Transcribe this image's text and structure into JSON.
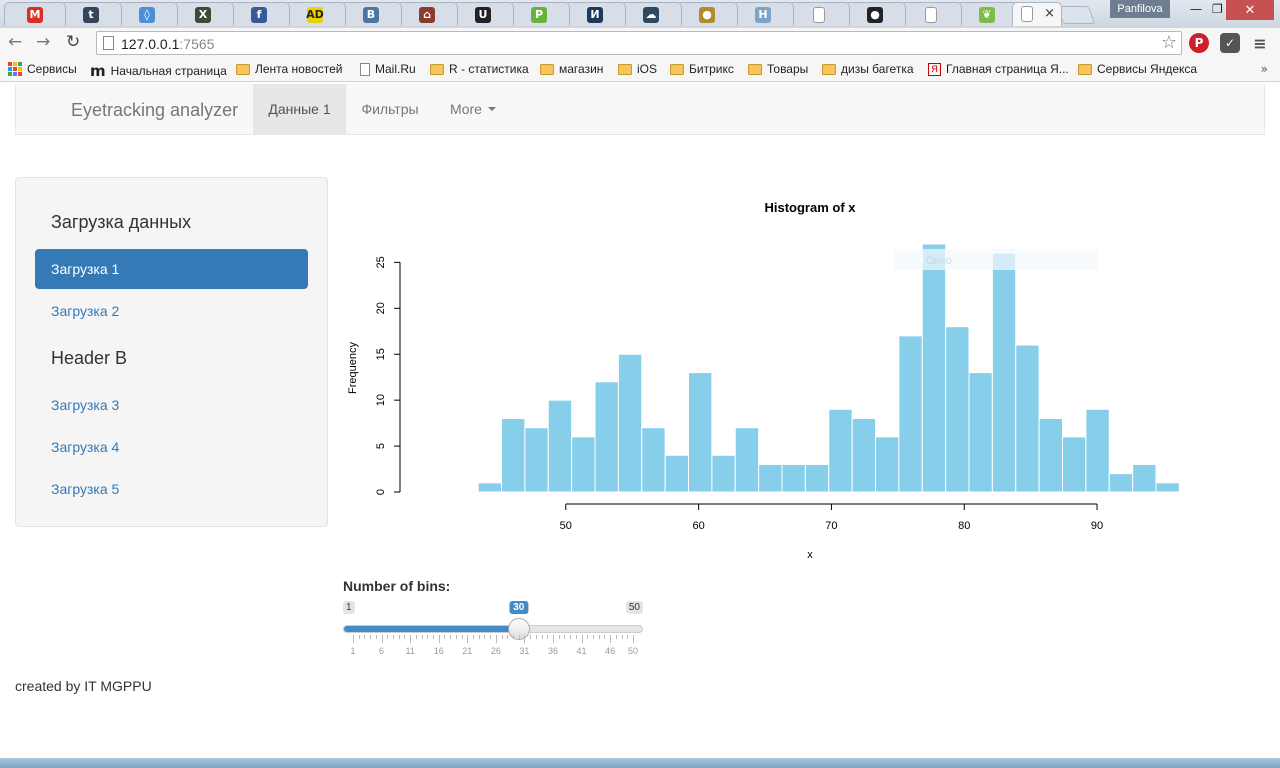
{
  "browser": {
    "tabs": [
      {
        "icon": "gmail-icon",
        "glyph": "M",
        "color": "#d93025"
      },
      {
        "icon": "tumblr-icon",
        "glyph": "t",
        "color": "#35465c"
      },
      {
        "icon": "compass-icon",
        "glyph": "◊",
        "color": "#4a90d9"
      },
      {
        "icon": "xmind-icon",
        "glyph": "X",
        "color": "#3d4a3a"
      },
      {
        "icon": "facebook-icon",
        "glyph": "f",
        "color": "#3b5998"
      },
      {
        "icon": "ad-icon",
        "glyph": "AD",
        "color": "#e8d200"
      },
      {
        "icon": "vk-icon",
        "glyph": "B",
        "color": "#4c75a3"
      },
      {
        "icon": "store-icon",
        "glyph": "⌂",
        "color": "#8a3b2c"
      },
      {
        "icon": "upwork-icon",
        "glyph": "U",
        "color": "#222222"
      },
      {
        "icon": "p-icon",
        "glyph": "P",
        "color": "#65b33a"
      },
      {
        "icon": "i-icon",
        "glyph": "И",
        "color": "#1f3a58"
      },
      {
        "icon": "cloud-icon",
        "glyph": "☁",
        "color": "#2e4a63"
      },
      {
        "icon": "coin-icon",
        "glyph": "●",
        "color": "#b08a2e"
      },
      {
        "icon": "h-icon",
        "glyph": "H",
        "color": "#7fa3c4"
      },
      {
        "icon": "page-icon",
        "glyph": "",
        "color": "#ffffff"
      },
      {
        "icon": "github-icon",
        "glyph": "●",
        "color": "#222222"
      },
      {
        "icon": "page-icon",
        "glyph": "",
        "color": "#ffffff"
      },
      {
        "icon": "leaf-icon",
        "glyph": "❦",
        "color": "#7dbb4a"
      }
    ],
    "active_tab_close": "×",
    "profile_name": "Panfilova",
    "url_host": "127.0.0.1",
    "url_port": ":7565",
    "bookmarks": [
      {
        "label": "Сервисы",
        "type": "apps"
      },
      {
        "label": "Начальная страница",
        "type": "m"
      },
      {
        "label": "Лента новостей",
        "type": "folder"
      },
      {
        "label": "Mail.Ru",
        "type": "page"
      },
      {
        "label": "R - статистика",
        "type": "folder"
      },
      {
        "label": "магазин",
        "type": "folder"
      },
      {
        "label": "iOS",
        "type": "folder"
      },
      {
        "label": "Битрикс",
        "type": "folder"
      },
      {
        "label": "Товары",
        "type": "folder"
      },
      {
        "label": "дизы багетка",
        "type": "folder"
      },
      {
        "label": "Главная страница Я...",
        "type": "ya"
      },
      {
        "label": "Сервисы Яндекса",
        "type": "folder"
      }
    ],
    "bookmarks_more": "»"
  },
  "app": {
    "brand": "Eyetracking analyzer",
    "nav": [
      {
        "label": "Данные 1",
        "active": true
      },
      {
        "label": "Фильтры",
        "active": false
      },
      {
        "label": "More",
        "active": false,
        "dropdown": true
      }
    ],
    "sidebar": {
      "header_a": "Загрузка данных",
      "header_b": "Header B",
      "items": [
        {
          "label": "Загрузка 1",
          "active": true
        },
        {
          "label": "Загрузка 2",
          "active": false
        },
        {
          "label": "Загрузка 3",
          "active": false
        },
        {
          "label": "Загрузка 4",
          "active": false
        },
        {
          "label": "Загрузка 5",
          "active": false
        }
      ]
    },
    "tooltip_ghost": "Окно",
    "slider": {
      "label": "Number of bins:",
      "min": 1,
      "max": 50,
      "value": 30,
      "ticks": [
        1,
        6,
        11,
        16,
        21,
        26,
        31,
        36,
        41,
        46,
        50
      ]
    },
    "footer": "created by IT MGPPU"
  },
  "chart_data": {
    "type": "bar",
    "title": "Histogram of x",
    "xlabel": "x",
    "ylabel": "Frequency",
    "bar_color": "#87ceeb",
    "bin_width": 1.76,
    "bin_start": 43.4,
    "values": [
      1,
      8,
      7,
      10,
      6,
      12,
      15,
      7,
      4,
      13,
      4,
      7,
      3,
      3,
      3,
      9,
      8,
      6,
      17,
      27,
      18,
      13,
      26,
      16,
      8,
      6,
      9,
      2,
      3,
      1
    ],
    "xlim": [
      40,
      97
    ],
    "ylim": [
      0,
      27
    ],
    "xticks": [
      50,
      60,
      70,
      80,
      90
    ],
    "yticks": [
      0,
      5,
      10,
      15,
      20,
      25
    ]
  }
}
